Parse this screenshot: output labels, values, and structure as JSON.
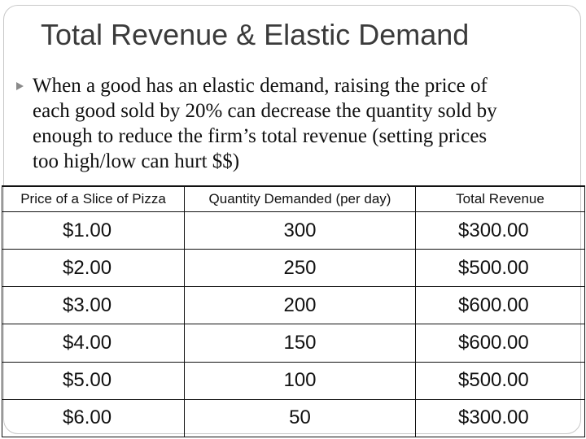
{
  "slide": {
    "title": "Total Revenue & Elastic Demand",
    "bullet_lines": [
      "When a good has an elastic demand, raising the price of",
      "each good sold by 20% can decrease the quantity sold by",
      "enough to reduce the firm’s total revenue (setting prices",
      "too high/low can hurt $$)"
    ]
  },
  "table": {
    "headers": [
      "Price of a Slice of Pizza",
      "Quantity Demanded (per day)",
      "Total Revenue"
    ],
    "rows": [
      [
        "$1.00",
        "300",
        "$300.00"
      ],
      [
        "$2.00",
        "250",
        "$500.00"
      ],
      [
        "$3.00",
        "200",
        "$600.00"
      ],
      [
        "$4.00",
        "150",
        "$600.00"
      ],
      [
        "$5.00",
        "100",
        "$500.00"
      ],
      [
        "$6.00",
        "50",
        "$300.00"
      ]
    ]
  }
}
